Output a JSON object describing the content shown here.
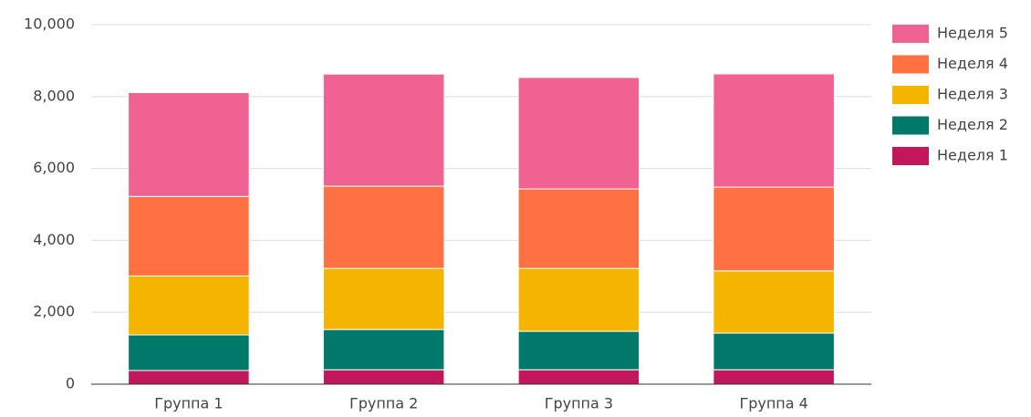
{
  "chart_data": {
    "type": "stacked_bar",
    "categories": [
      "Группа 1",
      "Группа 2",
      "Группа 3",
      "Группа 4"
    ],
    "series": [
      {
        "name": "Неделя 1",
        "color": "#c2185b",
        "values": [
          380,
          400,
          400,
          400
        ]
      },
      {
        "name": "Неделя 2",
        "color": "#00796b",
        "values": [
          990,
          1120,
          1070,
          1020
        ]
      },
      {
        "name": "Неделя 3",
        "color": "#f4b400",
        "values": [
          1640,
          1700,
          1750,
          1730
        ]
      },
      {
        "name": "Неделя 4",
        "color": "#ff7043",
        "values": [
          2210,
          2285,
          2210,
          2330
        ]
      },
      {
        "name": "Неделя 5",
        "color": "#f06292",
        "values": [
          2890,
          3120,
          3100,
          3150
        ]
      }
    ],
    "ylim": [
      0,
      10000
    ],
    "yticks": [
      0,
      {
        "value": 2000,
        "label": "2,000"
      },
      {
        "value": 4000,
        "label": "4,000"
      },
      {
        "value": 6000,
        "label": "6,000"
      },
      {
        "value": 8000,
        "label": "8,000"
      },
      {
        "value": 10000,
        "label": "10,000"
      }
    ],
    "grid": true,
    "legend": "right"
  }
}
